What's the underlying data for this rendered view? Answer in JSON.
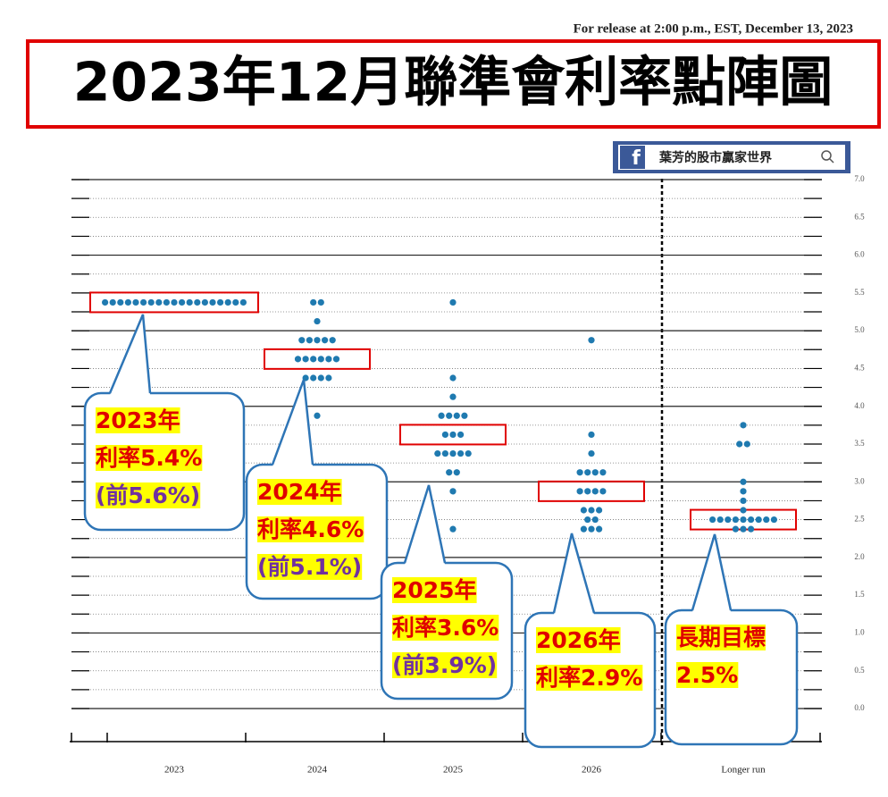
{
  "release_note": "For release at 2:00 p.m., EST, December 13, 2023",
  "title": "2023年12月聯準會利率點陣圖",
  "badge": {
    "icon": "f",
    "text": "葉芳的股市贏家世界"
  },
  "chart_data": {
    "type": "dot",
    "categories": [
      "2023",
      "2024",
      "2025",
      "2026",
      "Longer run"
    ],
    "values": [
      [
        5.375,
        5.375,
        5.375,
        5.375,
        5.375,
        5.375,
        5.375,
        5.375,
        5.375,
        5.375,
        5.375,
        5.375,
        5.375,
        5.375,
        5.375,
        5.375,
        5.375,
        5.375,
        5.375
      ],
      [
        5.375,
        5.375,
        5.125,
        4.875,
        4.875,
        4.875,
        4.875,
        4.875,
        4.625,
        4.625,
        4.625,
        4.625,
        4.625,
        4.625,
        4.375,
        4.375,
        4.375,
        4.375,
        3.875
      ],
      [
        5.375,
        4.375,
        4.125,
        3.875,
        3.875,
        3.875,
        3.875,
        3.625,
        3.625,
        3.625,
        3.375,
        3.375,
        3.375,
        3.375,
        3.375,
        3.125,
        3.125,
        2.875,
        2.375
      ],
      [
        4.875,
        3.625,
        3.375,
        3.125,
        3.125,
        3.125,
        3.125,
        2.875,
        2.875,
        2.875,
        2.875,
        2.625,
        2.625,
        2.625,
        2.5,
        2.5,
        2.375,
        2.375,
        2.375
      ],
      [
        3.75,
        3.5,
        3.5,
        3.0,
        2.875,
        2.75,
        2.625,
        2.5,
        2.5,
        2.5,
        2.5,
        2.5,
        2.5,
        2.5,
        2.5,
        2.5,
        2.375,
        2.375,
        2.375
      ]
    ],
    "color": "#1f7ab0",
    "medians": [
      5.375,
      4.625,
      3.625,
      2.875,
      2.5
    ],
    "median_color": "#e00000",
    "ylim": [
      0,
      7
    ],
    "yticks": [
      {
        "value": 0,
        "label": "0.0"
      },
      0.5,
      {
        "value": 1,
        "label": "1.0"
      },
      1.5,
      {
        "value": 2,
        "label": "2.0"
      },
      2.5,
      {
        "value": 3,
        "label": "3.0"
      },
      3.5,
      {
        "value": 4,
        "label": "4.0"
      },
      4.5,
      {
        "value": 5,
        "label": "5.0"
      },
      5.5,
      {
        "value": 6,
        "label": "6.0"
      },
      6.5,
      {
        "value": 7,
        "label": "7.0"
      }
    ],
    "minor_yticks": [
      0.25,
      0.75,
      1.25,
      1.75,
      2.25,
      2.75,
      3.25,
      3.75,
      4.25,
      4.75,
      5.25,
      5.75,
      6.25,
      6.75
    ],
    "grid": true,
    "annotations": [
      {
        "lines": [
          "2023年",
          "利率5.4%",
          "(前5.6%)"
        ]
      },
      {
        "lines": [
          "2024年",
          "利率4.6%",
          "(前5.1%)"
        ]
      },
      {
        "lines": [
          "2025年",
          "利率3.6%",
          "(前3.9%)"
        ]
      },
      {
        "lines": [
          "2026年",
          "利率2.9%"
        ]
      },
      {
        "lines": [
          "長期目標",
          "2.5%"
        ]
      }
    ]
  }
}
